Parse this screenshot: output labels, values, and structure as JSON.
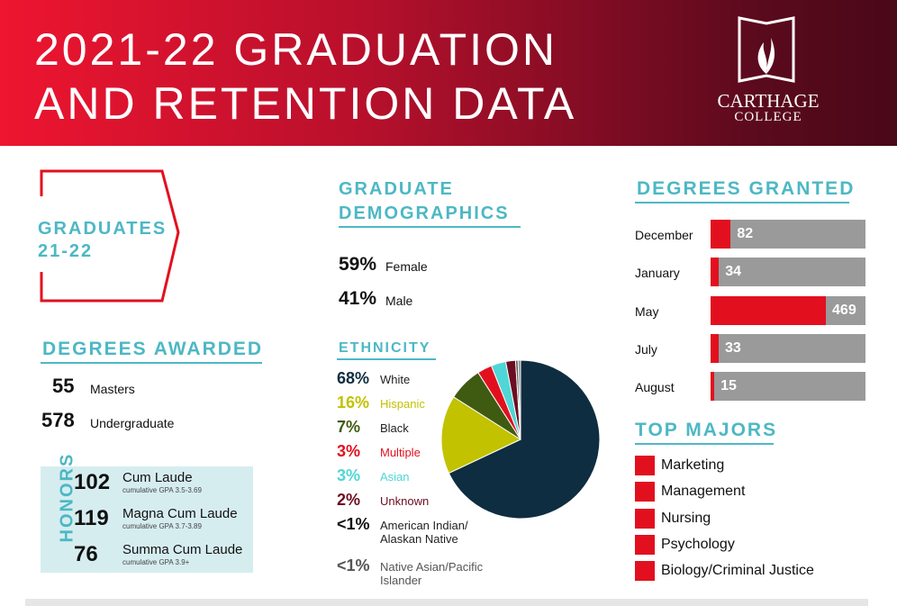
{
  "header": {
    "title_line1": "2021-22 GRADUATION",
    "title_line2": "AND RETENTION DATA",
    "logo_line1": "CARTHAGE",
    "logo_line2": "COLLEGE"
  },
  "graduates": {
    "title_line1": "GRADUATES",
    "title_line2": "21-22"
  },
  "degrees_awarded": {
    "title": "DEGREES AWARDED",
    "items": [
      {
        "count": 55,
        "label": "Masters"
      },
      {
        "count": 578,
        "label": "Undergraduate"
      }
    ]
  },
  "honors": {
    "title": "HONORS",
    "items": [
      {
        "count": 102,
        "label": "Cum Laude",
        "note": "cumulative GPA 3.5-3.69"
      },
      {
        "count": 119,
        "label": "Magna Cum Laude",
        "note": "cumulative GPA 3.7-3.89"
      },
      {
        "count": 76,
        "label": "Summa Cum Laude",
        "note": "cumulative GPA 3.9+"
      }
    ]
  },
  "demographics": {
    "title_line1": "GRADUATE",
    "title_line2": "DEMOGRAPHICS",
    "gender": [
      {
        "percent": "59%",
        "label": "Female"
      },
      {
        "percent": "41%",
        "label": "Male"
      }
    ]
  },
  "ethnicity": {
    "title": "ETHNICITY",
    "type": "pie",
    "items": [
      {
        "name": "White",
        "value": 68,
        "value_label": "68%",
        "color": "#0f2d40",
        "text_color": "#0f2d40",
        "name_color": "#222222"
      },
      {
        "name": "Hispanic",
        "value": 16,
        "value_label": "16%",
        "color": "#c2c200",
        "text_color": "#c2c200",
        "name_color": "#c2c200"
      },
      {
        "name": "Black",
        "value": 7,
        "value_label": "7%",
        "color": "#3f5b12",
        "text_color": "#3f5b12",
        "name_color": "#222222"
      },
      {
        "name": "Multiple",
        "value": 3,
        "value_label": "3%",
        "color": "#e2101f",
        "text_color": "#e2101f",
        "name_color": "#e2101f"
      },
      {
        "name": "Asian",
        "value": 3,
        "value_label": "3%",
        "color": "#4fd6d6",
        "text_color": "#4fd6d6",
        "name_color": "#4fd6d6"
      },
      {
        "name": "Unknown",
        "value": 2,
        "value_label": "2%",
        "color": "#6b0e22",
        "text_color": "#6b0e22",
        "name_color": "#6b0e22"
      },
      {
        "name": "American Indian/ Alaskan Native",
        "value": 0.5,
        "value_label": "<1%",
        "color": "#555555",
        "text_color": "#111111",
        "name_color": "#222222"
      },
      {
        "name": "Native Asian/Pacific Islander",
        "value": 0.5,
        "value_label": "<1%",
        "color": "#888888",
        "text_color": "#555555",
        "name_color": "#555555"
      }
    ]
  },
  "degrees_granted": {
    "title": "DEGREES GRANTED",
    "type": "bar",
    "categories": [
      "December",
      "January",
      "May",
      "July",
      "August"
    ],
    "values": [
      82,
      34,
      469,
      33,
      15
    ],
    "color": "#e2101f",
    "track_color": "#9a9a9a"
  },
  "top_majors": {
    "title": "TOP MAJORS",
    "items": [
      "Marketing",
      "Management",
      "Nursing",
      "Psychology",
      "Biology/Criminal Justice"
    ]
  }
}
